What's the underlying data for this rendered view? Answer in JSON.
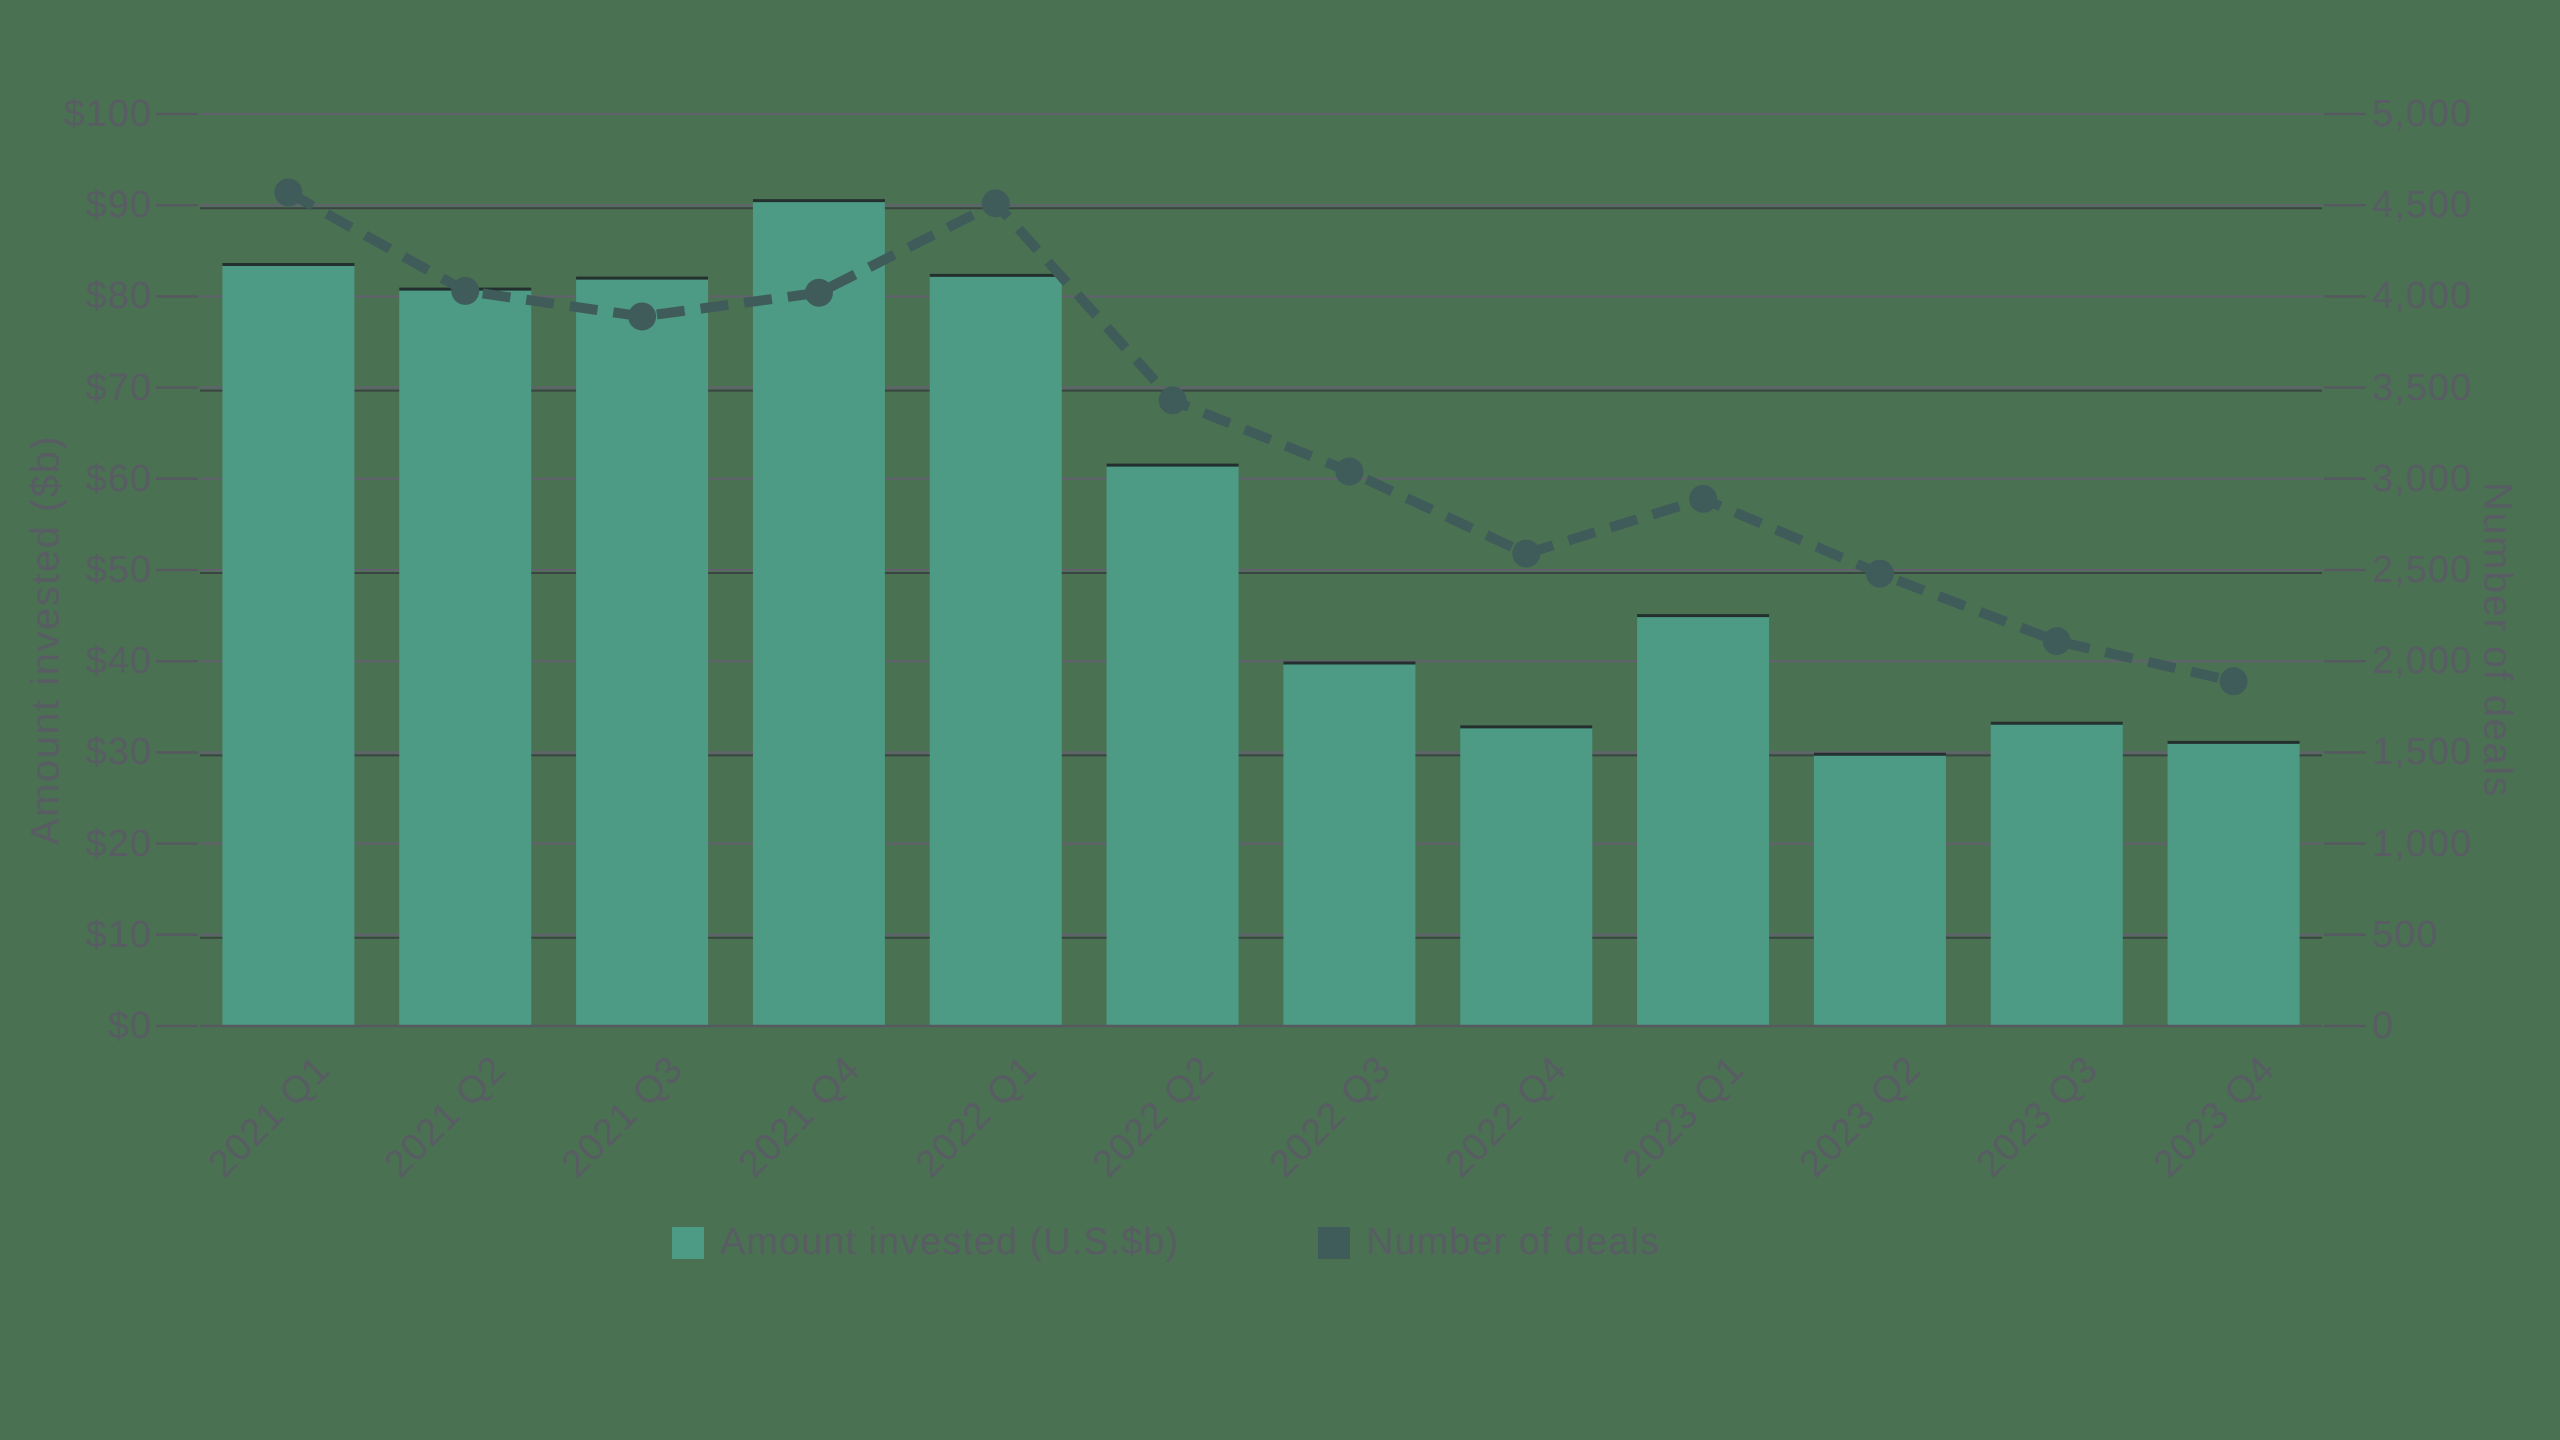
{
  "chart_data": {
    "type": "bar",
    "combo": "bar+line",
    "categories": [
      "2021 Q1",
      "2021 Q2",
      "2021 Q3",
      "2021 Q4",
      "2022 Q1",
      "2022 Q2",
      "2022 Q3",
      "2022 Q4",
      "2023 Q1",
      "2023 Q2",
      "2023 Q3",
      "2023 Q4"
    ],
    "series": [
      {
        "name": "Amount invested (U.S.$b)",
        "type": "bar",
        "axis": "left",
        "values": [
          83.5,
          80.8,
          82.0,
          90.5,
          82.3,
          61.5,
          39.8,
          32.8,
          45.0,
          29.8,
          33.2,
          31.1
        ]
      },
      {
        "name": "Number of deals",
        "type": "line",
        "line_style": "dotted",
        "marker": "circle",
        "axis": "right",
        "values": [
          4570,
          4030,
          3890,
          4020,
          4510,
          3430,
          3040,
          2590,
          2890,
          2480,
          2110,
          1890
        ]
      }
    ],
    "left_axis": {
      "title": "Amount invested ($b)",
      "min": 0,
      "max": 100,
      "step": 10,
      "tick_labels": [
        "$0",
        "$10",
        "$20",
        "$30",
        "$40",
        "$50",
        "$60",
        "$70",
        "$80",
        "$90",
        "$100"
      ]
    },
    "right_axis": {
      "title": "Number of deals",
      "min": 0,
      "max": 5000,
      "step": 500,
      "tick_labels": [
        "0",
        "500",
        "1,000",
        "1,500",
        "2,000",
        "2,500",
        "3,000",
        "3,500",
        "4,000",
        "4,500",
        "5,000"
      ]
    },
    "grid": true,
    "legend_position": "bottom"
  },
  "legend": {
    "items": [
      {
        "label": "Amount invested (U.S.$b)",
        "swatch": "bar"
      },
      {
        "label": "Number of deals",
        "swatch": "line"
      }
    ]
  },
  "colors": {
    "background": "#4B7153",
    "bar": "#4D9A85",
    "bar_top_edge": "#24302E",
    "line": "#3F5C5A",
    "grid": "#63606F",
    "grid_dark": "#3A4441",
    "tick": "#565A60",
    "text": "#585C63"
  }
}
